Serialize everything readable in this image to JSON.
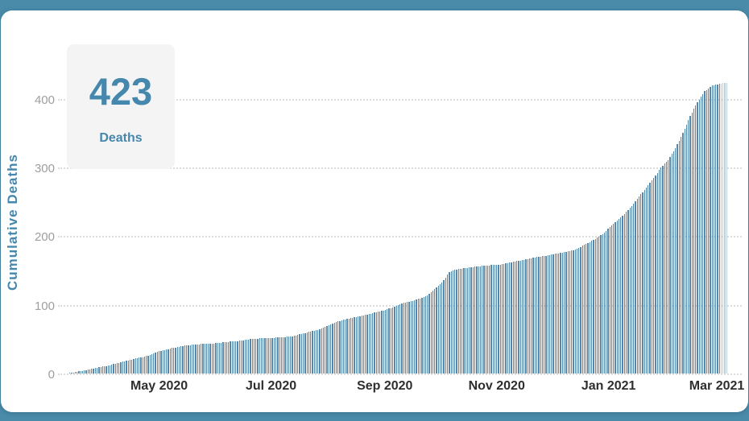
{
  "stat_card": {
    "value": "423",
    "label": "Deaths"
  },
  "chart_data": {
    "type": "bar",
    "title": "",
    "ylabel": "Cumulative Deaths",
    "xlabel": "",
    "series_name": "Cumulative Deaths",
    "y_ticks": [
      "0",
      "100",
      "200",
      "300",
      "400"
    ],
    "ylim": [
      0,
      440
    ],
    "grid": "horizontal-dotted",
    "legend_position": "none",
    "x_tick_labels": [
      "May 2020",
      "Jul 2020",
      "Sep 2020",
      "Nov 2020",
      "Jan 2021",
      "Mar 2021"
    ],
    "x_tick_days": [
      49,
      110,
      172,
      233,
      294,
      353
    ],
    "x_start_date": "2020-03-13",
    "x_step_days": 4,
    "final_value": 423,
    "values": [
      1,
      2.5,
      4.5,
      6.5,
      9,
      11,
      13.5,
      16.5,
      19,
      22,
      24,
      27,
      31.5,
      34.5,
      37,
      39,
      41,
      42,
      43,
      43.5,
      44,
      45.5,
      46.5,
      47,
      49,
      50.5,
      51,
      51.5,
      52,
      53,
      53.5,
      55.5,
      58.5,
      61,
      63.5,
      68,
      73,
      76.5,
      79.5,
      82,
      84,
      86.5,
      89.5,
      92,
      95.5,
      100,
      103.5,
      106,
      109.5,
      114,
      122.5,
      132,
      148,
      151.5,
      153,
      155,
      156,
      157,
      158,
      158.5,
      161,
      163.5,
      165,
      167.5,
      169.5,
      171,
      173.5,
      175,
      177,
      179.5,
      184.5,
      190,
      196,
      203,
      213,
      222.5,
      232,
      244,
      257.5,
      271,
      284.5,
      300,
      311,
      328,
      350,
      375,
      395,
      411,
      419,
      422,
      423
    ]
  },
  "colors": {
    "frame": "#4a8baa",
    "bar": "#5588ab",
    "bar_recent": "#b9d2e2",
    "grid": "#dcdcdc",
    "y_tick_text": "#9e9e9e",
    "x_tick_text": "#2e2e2e",
    "accent_blue": "#4587ad",
    "card_bg": "#f4f4f5"
  }
}
